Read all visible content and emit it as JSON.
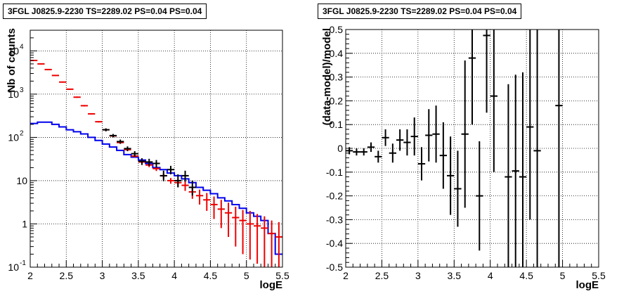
{
  "chart_data": [
    {
      "type": "line",
      "title": "3FGL J0825.9-2230 TS=2289.02 PS=0.04 PS=0.04",
      "xlabel": "logE",
      "ylabel": "Nb of counts",
      "xlim": [
        2,
        5.5
      ],
      "ylim": [
        0.1,
        30000
      ],
      "yscale": "log",
      "grid": true,
      "x_ticks": [
        "2",
        "2.5",
        "3",
        "3.5",
        "4",
        "4.5",
        "5",
        "5.5"
      ],
      "y_ticks": [
        {
          "value": 0.1,
          "base": "10",
          "exp": "-1"
        },
        {
          "value": 1,
          "base": "1",
          "exp": ""
        },
        {
          "value": 10,
          "base": "10",
          "exp": ""
        },
        {
          "value": 100,
          "base": "10",
          "exp": "2"
        },
        {
          "value": 1000,
          "base": "10",
          "exp": "3"
        },
        {
          "value": 10000,
          "base": "10",
          "exp": "4"
        }
      ],
      "bin_edges": [
        2.0,
        2.1,
        2.2,
        2.3,
        2.4,
        2.5,
        2.6,
        2.7,
        2.8,
        2.9,
        3.0,
        3.1,
        3.2,
        3.3,
        3.4,
        3.5,
        3.6,
        3.7,
        3.8,
        3.9,
        4.0,
        4.1,
        4.2,
        4.3,
        4.4,
        4.5,
        4.6,
        4.7,
        4.8,
        4.9,
        5.0,
        5.1,
        5.2,
        5.3,
        5.4,
        5.5
      ],
      "series": [
        {
          "role": "blue-step",
          "color": "#0000ee",
          "values": [
            210,
            225,
            225,
            200,
            175,
            150,
            135,
            120,
            100,
            85,
            70,
            60,
            50,
            40,
            35,
            30,
            25,
            20,
            18,
            15,
            13,
            11,
            9,
            7,
            6,
            5,
            4,
            3.4,
            2.8,
            2.3,
            1.8,
            1.5,
            1.2,
            0.6,
            0.2
          ]
        },
        {
          "role": "red-model",
          "color": "#ee0000",
          "x": [
            2.05,
            2.15,
            2.25,
            2.35,
            2.45,
            2.55,
            2.65,
            2.75,
            2.85,
            2.95,
            3.05,
            3.15,
            3.25,
            3.35,
            3.45,
            3.55,
            3.65,
            3.75,
            3.85,
            3.95,
            4.05,
            4.15,
            4.25,
            4.35,
            4.45,
            4.55,
            4.65,
            4.75,
            4.85,
            4.95,
            5.05,
            5.15,
            5.25,
            5.35,
            5.45
          ],
          "y": [
            6000,
            5000,
            3700,
            2700,
            1900,
            1300,
            850,
            540,
            350,
            230,
            150,
            108,
            76,
            52,
            37,
            27,
            23,
            19,
            13,
            10,
            9,
            7.8,
            5.5,
            4.5,
            3.6,
            2.8,
            2.2,
            1.8,
            1.4,
            1.2,
            1.0,
            0.9,
            0.8,
            0.6,
            0.5
          ],
          "ylo": [
            5800,
            4850,
            3600,
            2620,
            1840,
            1260,
            820,
            520,
            337,
            221,
            144,
            103,
            72,
            48.8,
            34.5,
            24.6,
            20.5,
            16.7,
            11.3,
            8.5,
            7.1,
            5.8,
            3.8,
            2.8,
            2.0,
            1.3,
            0.8,
            0.5,
            0.3,
            0.2,
            0.15,
            0.12,
            0.1,
            0.1,
            0.1
          ],
          "yhi": [
            6200,
            5150,
            3800,
            2780,
            1960,
            1340,
            880,
            560,
            363,
            239,
            156,
            113,
            80,
            55.2,
            39.5,
            29.4,
            25.5,
            21.3,
            14.7,
            11.5,
            10.9,
            9.8,
            7.2,
            6.2,
            5.2,
            4.3,
            3.6,
            3.1,
            2.5,
            2.1,
            2.0,
            1.7,
            1.5,
            1.2,
            1.1
          ]
        },
        {
          "role": "black-data",
          "color": "#000000",
          "x": [
            3.05,
            3.15,
            3.25,
            3.35,
            3.45,
            3.55,
            3.65,
            3.75,
            3.85,
            3.95,
            4.05,
            4.15,
            4.25
          ],
          "y": [
            150,
            110,
            80,
            55,
            42,
            28,
            27,
            25,
            13,
            18,
            10,
            13,
            7
          ],
          "ylo": [
            138,
            100,
            71,
            48,
            36,
            23,
            22,
            20,
            9.7,
            14,
            7,
            9.5,
            4.5
          ],
          "yhi": [
            162,
            120,
            89,
            62,
            48,
            33,
            32,
            30,
            17,
            22,
            14,
            17,
            10
          ]
        }
      ]
    },
    {
      "type": "scatter",
      "title": "3FGL J0825.9-2230 TS=2289.02 PS=0.04 PS=0.04",
      "xlabel": "logE",
      "ylabel": "(data-model)/model",
      "xlim": [
        2,
        5.5
      ],
      "ylim": [
        -0.5,
        0.5
      ],
      "grid": true,
      "x_ticks": [
        "2",
        "2.5",
        "3",
        "3.5",
        "4",
        "4.5",
        "5",
        "5.5"
      ],
      "y_ticks": [
        "-0.5",
        "-0.4",
        "-0.3",
        "-0.2",
        "-0.1",
        "0",
        "0.1",
        "0.2",
        "0.3",
        "0.4",
        "0.5"
      ],
      "series": [
        {
          "color": "#000000",
          "x": [
            2.05,
            2.15,
            2.25,
            2.35,
            2.45,
            2.55,
            2.65,
            2.75,
            2.85,
            2.95,
            3.05,
            3.15,
            3.25,
            3.35,
            3.45,
            3.55,
            3.65,
            3.75,
            3.85,
            3.95,
            4.05,
            4.25,
            4.35,
            4.45,
            4.55,
            4.65,
            4.95
          ],
          "y": [
            -0.01,
            -0.015,
            -0.015,
            0.005,
            -0.035,
            0.045,
            -0.02,
            0.035,
            0.025,
            0.05,
            -0.065,
            0.055,
            0.06,
            -0.03,
            -0.115,
            -0.17,
            0.06,
            0.38,
            -0.2,
            0.475,
            0.22,
            -0.12,
            -0.095,
            -0.12,
            0.09,
            -0.01,
            0.18
          ],
          "ylo": [
            -0.025,
            -0.03,
            -0.03,
            -0.015,
            -0.06,
            0.01,
            -0.06,
            -0.01,
            -0.03,
            -0.03,
            -0.135,
            -0.055,
            -0.06,
            -0.17,
            -0.28,
            -0.33,
            -0.25,
            0.1,
            -0.43,
            0.15,
            -0.1,
            -0.5,
            -0.5,
            -0.5,
            -0.3,
            -0.5,
            -0.5
          ],
          "yhi": [
            0.005,
            0.0,
            0.0,
            0.025,
            -0.01,
            0.08,
            0.02,
            0.08,
            0.08,
            0.13,
            0.005,
            0.165,
            0.18,
            0.11,
            0.05,
            -0.01,
            0.37,
            0.5,
            0.03,
            0.5,
            0.5,
            0.27,
            0.31,
            0.32,
            0.5,
            0.5,
            0.5
          ]
        }
      ]
    }
  ]
}
